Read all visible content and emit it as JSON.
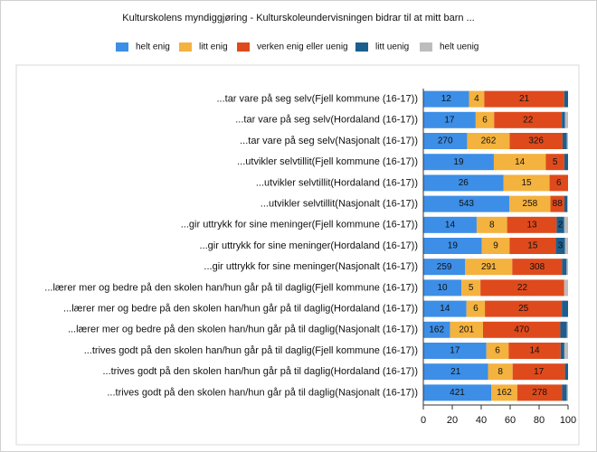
{
  "chart_data": {
    "type": "bar",
    "orientation": "horizontal",
    "stacking": "percent",
    "title": "Kulturskolens myndiggjøring - Kulturskoleundervisningen bidrar til at mitt barn ...",
    "categories": [
      "...tar vare på seg selv(Fjell kommune (16-17))",
      "...tar vare på seg selv(Hordaland (16-17))",
      "...tar vare på seg selv(Nasjonalt (16-17))",
      "...utvikler selvtillit(Fjell kommune (16-17))",
      "...utvikler selvtillit(Hordaland (16-17))",
      "...utvikler selvtillit(Nasjonalt (16-17))",
      "...gir uttrykk for sine meninger(Fjell kommune (16-17))",
      "...gir uttrykk for sine meninger(Hordaland (16-17))",
      "...gir uttrykk for sine meninger(Nasjonalt (16-17))",
      "...lærer mer og bedre på den skolen han/hun går på til daglig(Fjell kommune (16-17))",
      "...lærer mer og bedre på den skolen han/hun går på til daglig(Hordaland (16-17))",
      "...lærer mer og bedre på den skolen han/hun går på til daglig(Nasjonalt (16-17))",
      "...trives godt på den skolen han/hun går på til daglig(Fjell kommune (16-17))",
      "...trives godt på den skolen han/hun går på til daglig(Hordaland (16-17))",
      "...trives godt på den skolen han/hun går på til daglig(Nasjonalt (16-17))"
    ],
    "series": [
      {
        "name": "helt enig",
        "color": "#3d8ee6",
        "values": [
          12,
          17,
          270,
          19,
          26,
          543,
          14,
          19,
          259,
          10,
          14,
          162,
          17,
          21,
          421
        ]
      },
      {
        "name": "litt enig",
        "color": "#f4b23e",
        "values": [
          4,
          6,
          262,
          14,
          15,
          258,
          8,
          9,
          291,
          5,
          6,
          201,
          6,
          8,
          162
        ]
      },
      {
        "name": "verken enig eller uenig",
        "color": "#df4a1c",
        "values": [
          21,
          22,
          326,
          5,
          6,
          88,
          13,
          15,
          308,
          22,
          25,
          470,
          14,
          17,
          278
        ]
      },
      {
        "name": "litt uenig",
        "color": "#1c5f8e",
        "values": [
          1,
          1,
          27,
          1,
          0,
          18,
          2,
          3,
          28,
          0,
          2,
          40,
          1,
          1,
          29
        ]
      },
      {
        "name": "helt uenig",
        "color": "#bdbdbd",
        "values": [
          0,
          1,
          7,
          0,
          0,
          5,
          1,
          1,
          9,
          1,
          0,
          7,
          1,
          0,
          8
        ]
      }
    ],
    "xlim": [
      0,
      100
    ],
    "xticks": [
      0,
      20,
      40,
      60,
      80,
      100
    ]
  }
}
